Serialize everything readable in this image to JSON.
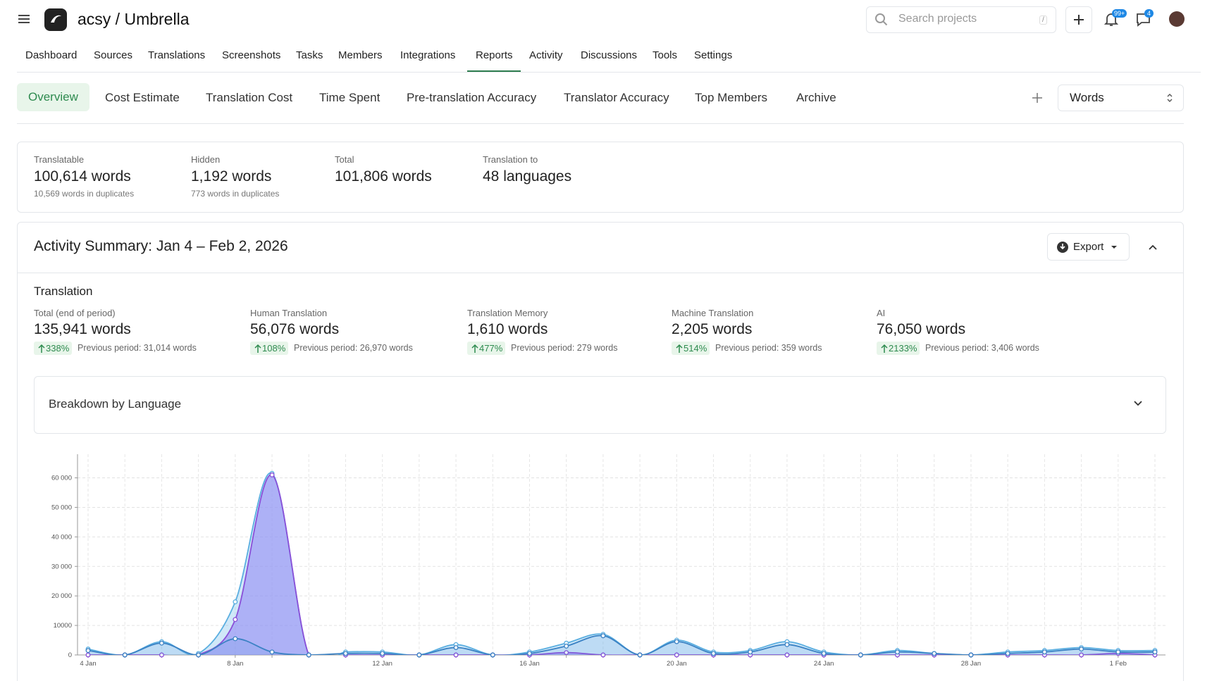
{
  "header": {
    "project": "acsy / Umbrella",
    "search_placeholder": "Search projects",
    "search_shortcut": "/",
    "notifications_badge": "99+",
    "messages_badge": "4"
  },
  "nav": [
    "Dashboard",
    "Sources",
    "Translations",
    "Screenshots",
    "Tasks",
    "Members",
    "Integrations",
    "Reports",
    "Activity",
    "Discussions",
    "Tools",
    "Settings"
  ],
  "report_tabs": [
    "Overview",
    "Cost Estimate",
    "Translation Cost",
    "Time Spent",
    "Pre-translation Accuracy",
    "Translator Accuracy",
    "Top Members",
    "Archive"
  ],
  "unit_select": "Words",
  "stats": [
    {
      "label": "Translatable",
      "value": "100,614 words",
      "note": "10,569 words in duplicates"
    },
    {
      "label": "Hidden",
      "value": "1,192 words",
      "note": "773 words in duplicates"
    },
    {
      "label": "Total",
      "value": "101,806 words"
    },
    {
      "label": "Translation to",
      "value": "48 languages"
    }
  ],
  "activity": {
    "title": "Activity Summary: Jan 4 – Feb 2, 2026",
    "export": "Export",
    "section": "Translation",
    "metrics": [
      {
        "label": "Total (end of period)",
        "value": "135,941 words",
        "change": "338%",
        "previous": "Previous period: 31,014 words"
      },
      {
        "label": "Human Translation",
        "value": "56,076 words",
        "change": "108%",
        "previous": "Previous period: 26,970 words"
      },
      {
        "label": "Translation Memory",
        "value": "1,610 words",
        "change": "477%",
        "previous": "Previous period: 279 words"
      },
      {
        "label": "Machine Translation",
        "value": "2,205 words",
        "change": "514%",
        "previous": "Previous period: 359 words"
      },
      {
        "label": "AI",
        "value": "76,050 words",
        "change": "2133%",
        "previous": "Previous period: 3,406 words"
      }
    ],
    "breakdown": "Breakdown by Language"
  },
  "chart_data": {
    "type": "area",
    "categories": [
      "4 Jan",
      null,
      null,
      null,
      "8 Jan",
      null,
      null,
      null,
      "12 Jan",
      null,
      null,
      null,
      "16 Jan",
      null,
      null,
      null,
      "20 Jan",
      null,
      null,
      null,
      "24 Jan",
      null,
      null,
      null,
      "28 Jan",
      null,
      null,
      null,
      "1 Feb",
      null
    ],
    "series": [
      {
        "color": "#5aaee0",
        "values": [
          2000,
          0,
          4500,
          500,
          18000,
          61500,
          0,
          1000,
          1000,
          0,
          3500,
          0,
          1000,
          4000,
          7000,
          0,
          5000,
          1000,
          1500,
          4500,
          1000,
          0,
          1500,
          500,
          0,
          1000,
          1500,
          2500,
          1500,
          1500
        ]
      },
      {
        "color": "#8a4fd8",
        "values": [
          0,
          0,
          0,
          0,
          12000,
          61000,
          0,
          0,
          0,
          0,
          0,
          0,
          0,
          800,
          0,
          0,
          0,
          0,
          0,
          0,
          0,
          0,
          0,
          0,
          0,
          0,
          0,
          0,
          500,
          0
        ]
      },
      {
        "color": "#3b82c4",
        "values": [
          1500,
          0,
          4000,
          0,
          5500,
          1000,
          0,
          500,
          500,
          0,
          2500,
          0,
          500,
          3000,
          6500,
          0,
          4500,
          500,
          1000,
          3500,
          500,
          0,
          1000,
          500,
          0,
          500,
          1000,
          2000,
          1000,
          1000
        ]
      }
    ],
    "ylim": [
      0,
      68000
    ],
    "yticks": [
      0,
      10000,
      {
        "value": 20000,
        "label": "20 000"
      },
      {
        "value": 30000,
        "label": "30 000"
      },
      {
        "value": 40000,
        "label": "40 000"
      },
      {
        "value": 50000,
        "label": "50 000"
      },
      {
        "value": 60000,
        "label": "60 000"
      }
    ],
    "grid": true
  }
}
